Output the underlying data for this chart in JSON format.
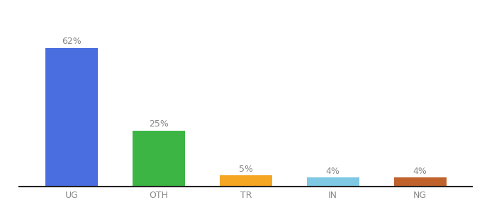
{
  "categories": [
    "UG",
    "OTH",
    "TR",
    "IN",
    "NG"
  ],
  "values": [
    62,
    25,
    5,
    4,
    4
  ],
  "labels": [
    "62%",
    "25%",
    "5%",
    "4%",
    "4%"
  ],
  "bar_colors": [
    "#4A6EE0",
    "#3CB544",
    "#F5A623",
    "#7EC8E3",
    "#C0622B"
  ],
  "background_color": "#ffffff",
  "ylim": [
    0,
    72
  ],
  "bar_width": 0.6,
  "label_fontsize": 9,
  "tick_fontsize": 9,
  "label_color": "#888888",
  "tick_color": "#888888",
  "spine_color": "#222222"
}
